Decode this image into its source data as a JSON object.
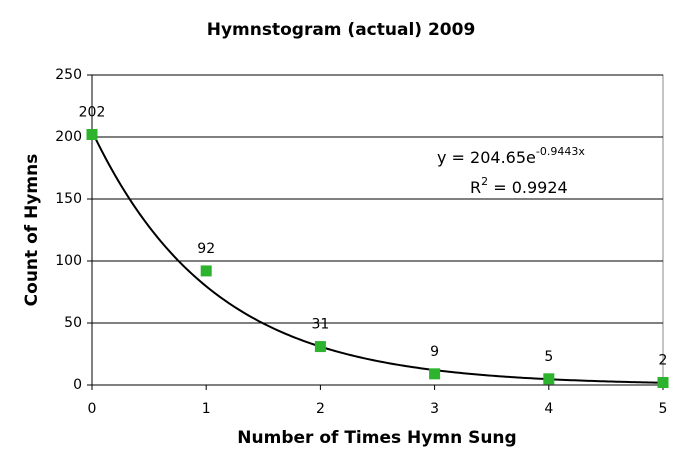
{
  "chart_data": {
    "type": "scatter",
    "title": "Hymnstogram (actual) 2009",
    "x_label": "Number of Times Hymn Sung",
    "y_label": "Count of Hymns",
    "x": [
      0,
      1,
      2,
      3,
      4,
      5
    ],
    "values": [
      202,
      92,
      31,
      9,
      5,
      2
    ],
    "color": "#2db32d",
    "xlim": [
      0,
      5
    ],
    "xticks": [
      0,
      1,
      2,
      3,
      4,
      5
    ],
    "ylim": [
      0,
      250
    ],
    "yticks": [
      0,
      50,
      100,
      150,
      200,
      250
    ],
    "grid": true,
    "trendline": {
      "type": "exponential",
      "coefficient": {
        "value": 204.65,
        "label": "y = 204.65e"
      },
      "exponent": {
        "value": -0.9443,
        "label": "-0.9443x"
      },
      "r2_symbol": "R",
      "r2_superscript": "2",
      "r2": {
        "value": 0.9924,
        "label": " = 0.9924"
      }
    }
  }
}
